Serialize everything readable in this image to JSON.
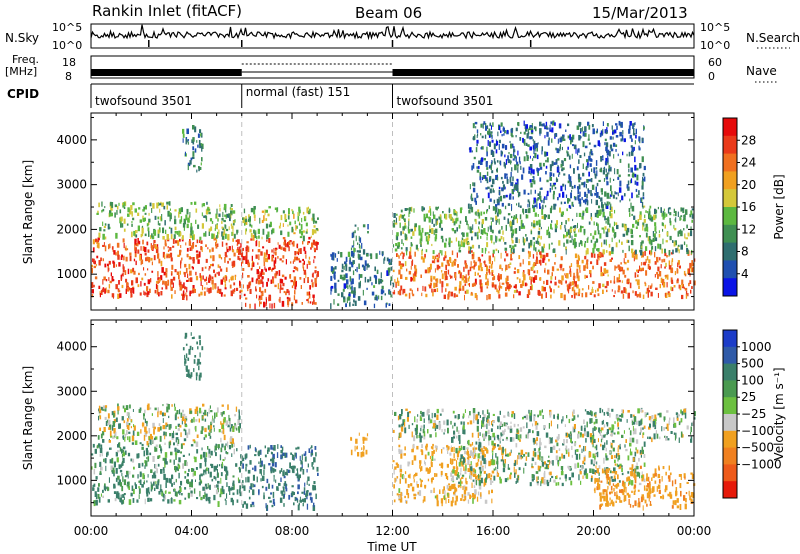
{
  "header": {
    "station": "Rankin Inlet (fitACF)",
    "beam": "Beam 06",
    "date": "15/Mar/2013"
  },
  "top_panel": {
    "left_label_sky": "N.Sky",
    "left_ticks_sky": [
      "10^5",
      "10^0"
    ],
    "right_ticks_sky": [
      "10^5",
      "10^0"
    ],
    "right_label_search": "N.Search",
    "freq_label_1": "Freq.",
    "freq_label_2": "[MHz]",
    "freq_ticks": [
      "18",
      "8"
    ],
    "nave_ticks": [
      "60",
      "0"
    ],
    "nave_label": "Nave",
    "cpid_label": "CPID",
    "cpid_segments": [
      {
        "label": "twofsound 3501",
        "start_hour": 0,
        "end_hour": 6
      },
      {
        "label": "normal (fast) 151",
        "start_hour": 6,
        "end_hour": 12
      },
      {
        "label": "twofsound 3501",
        "start_hour": 12,
        "end_hour": 24
      }
    ]
  },
  "chart_data": [
    {
      "type": "heatmap",
      "name": "power",
      "ylabel": "Slant Range [km]",
      "xlabel": "",
      "xlim": [
        0,
        24
      ],
      "ylim": [
        200,
        4600
      ],
      "yticks": [
        1000,
        2000,
        3000,
        4000
      ],
      "ytick_labels": [
        "1000",
        "2000",
        "3000",
        "4000"
      ],
      "colorbar": {
        "label": "Power [dB]",
        "tick_labels": [
          "28",
          "24",
          "20",
          "16",
          "12",
          "8",
          "4"
        ],
        "tick_values": [
          28,
          24,
          20,
          16,
          12,
          8,
          4
        ],
        "range": [
          0,
          32
        ],
        "colors": [
          "#0a14e6",
          "#1f4fb0",
          "#2f6e70",
          "#3f8f52",
          "#5cb840",
          "#d4c83a",
          "#f0a020",
          "#f07020",
          "#ea3a1a",
          "#e60a0a"
        ]
      },
      "scatter_regions": [
        {
          "t0": 0.0,
          "t1": 6.0,
          "r0": 500,
          "r1": 1800,
          "value": 26
        },
        {
          "t0": 0.2,
          "t1": 5.8,
          "r0": 1800,
          "r1": 2600,
          "value": 14
        },
        {
          "t0": 3.6,
          "t1": 4.4,
          "r0": 3300,
          "r1": 4300,
          "value": 9
        },
        {
          "t0": 6.0,
          "t1": 9.0,
          "r0": 300,
          "r1": 1800,
          "value": 27
        },
        {
          "t0": 6.0,
          "t1": 9.0,
          "r0": 1800,
          "r1": 2500,
          "value": 15
        },
        {
          "t0": 10.3,
          "t1": 11.0,
          "r0": 1500,
          "r1": 2100,
          "value": 10
        },
        {
          "t0": 9.5,
          "t1": 12.0,
          "r0": 300,
          "r1": 1500,
          "value": 8
        },
        {
          "t0": 12.0,
          "t1": 24.0,
          "r0": 500,
          "r1": 1500,
          "value": 24
        },
        {
          "t0": 12.0,
          "t1": 24.0,
          "r0": 1500,
          "r1": 2500,
          "value": 13
        },
        {
          "t0": 15.0,
          "t1": 22.0,
          "r0": 2500,
          "r1": 4400,
          "value": 7
        }
      ]
    },
    {
      "type": "heatmap",
      "name": "velocity",
      "ylabel": "Slant Range [km]",
      "xlabel": "Time UT",
      "xlim": [
        0,
        24
      ],
      "ylim": [
        200,
        4600
      ],
      "xticks": [
        0,
        4,
        8,
        12,
        16,
        20,
        24
      ],
      "xtick_labels": [
        "00:00",
        "04:00",
        "08:00",
        "12:00",
        "16:00",
        "20:00",
        "00:00"
      ],
      "yticks": [
        1000,
        2000,
        3000,
        4000
      ],
      "ytick_labels": [
        "1000",
        "2000",
        "3000",
        "4000"
      ],
      "colorbar": {
        "label": "Velocity [m s⁻¹]",
        "tick_labels": [
          "1000",
          "500",
          "100",
          "25",
          "−25",
          "−100",
          "−500",
          "−1000"
        ],
        "tick_values": [
          1000,
          500,
          100,
          25,
          -25,
          -100,
          -500,
          -1000
        ],
        "colors": [
          "#1c3cc8",
          "#2f5aa8",
          "#3a7f6a",
          "#4a9a50",
          "#6cc040",
          "#c8c8c8",
          "#f0a020",
          "#f08020",
          "#ee5a1a",
          "#e61a0a"
        ]
      },
      "scatter_regions": [
        {
          "t0": 0.0,
          "t1": 6.0,
          "r0": 500,
          "r1": 1800,
          "value": 150
        },
        {
          "t0": 0.2,
          "t1": 6.0,
          "r0": 1800,
          "r1": 2700,
          "value": 0
        },
        {
          "t0": 3.6,
          "t1": 4.4,
          "r0": 3300,
          "r1": 4300,
          "value": 300
        },
        {
          "t0": 6.0,
          "t1": 9.0,
          "r0": 400,
          "r1": 1800,
          "value": 400
        },
        {
          "t0": 10.3,
          "t1": 11.0,
          "r0": 1500,
          "r1": 2100,
          "value": -300
        },
        {
          "t0": 12.0,
          "t1": 16.0,
          "r0": 500,
          "r1": 1800,
          "value": -200
        },
        {
          "t0": 14.5,
          "t1": 22.0,
          "r0": 900,
          "r1": 1900,
          "value": 0
        },
        {
          "t0": 20.0,
          "t1": 24.0,
          "r0": 400,
          "r1": 1300,
          "value": -400
        },
        {
          "t0": 12.0,
          "t1": 24.0,
          "r0": 1900,
          "r1": 2600,
          "value": 50
        }
      ]
    }
  ],
  "colors": {
    "axis": "#000000",
    "divider": "#bfbfbf"
  }
}
